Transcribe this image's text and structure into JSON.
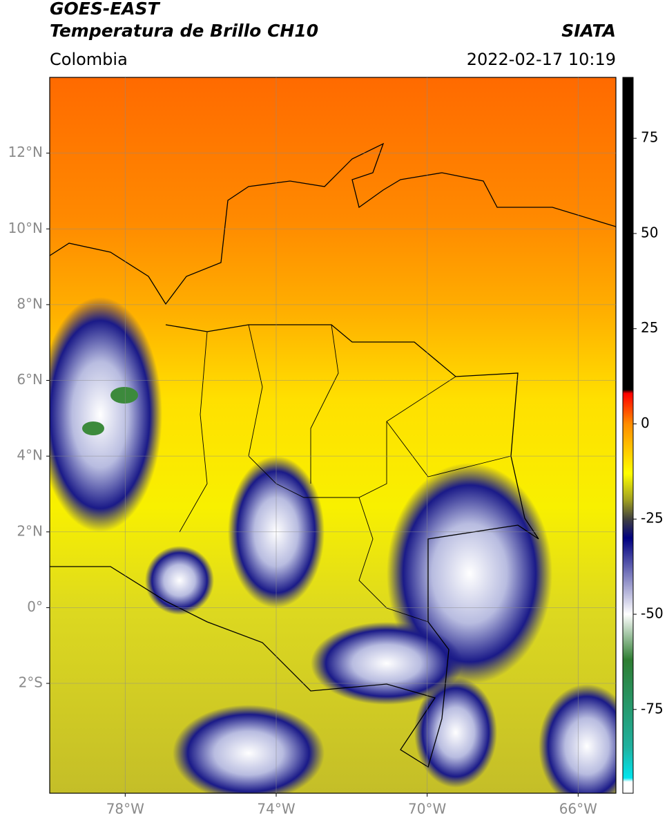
{
  "chart_data": {
    "type": "map",
    "title": "GOES-EAST",
    "subtitle": "Temperatura de Brillo CH10",
    "source": "SIATA",
    "region": "Colombia",
    "timestamp": "2022-02-17 10:19",
    "xlim": [
      -80,
      -65
    ],
    "ylim": [
      -4.9,
      14
    ],
    "xticks": [
      {
        "value": -78,
        "label": "78°W"
      },
      {
        "value": -74,
        "label": "74°W"
      },
      {
        "value": -70,
        "label": "70°W"
      },
      {
        "value": -66,
        "label": "66°W"
      }
    ],
    "yticks": [
      {
        "value": 12,
        "label": "12°N"
      },
      {
        "value": 10,
        "label": "10°N"
      },
      {
        "value": 8,
        "label": "8°N"
      },
      {
        "value": 6,
        "label": "6°N"
      },
      {
        "value": 4,
        "label": "4°N"
      },
      {
        "value": 2,
        "label": "2°N"
      },
      {
        "value": 0,
        "label": "0°"
      },
      {
        "value": -2,
        "label": "2°S"
      }
    ],
    "grid": true,
    "colorbar": {
      "lim": [
        -97,
        91
      ],
      "ticks": [
        75,
        50,
        25,
        0,
        -25,
        -50,
        -75
      ],
      "stops": [
        {
          "value": 91,
          "color": "#000000"
        },
        {
          "value": 9,
          "color": "#000000"
        },
        {
          "value": 8,
          "color": "#ff0000"
        },
        {
          "value": 0,
          "color": "#ff8c00"
        },
        {
          "value": -13,
          "color": "#ffff00"
        },
        {
          "value": -20,
          "color": "#a0a020"
        },
        {
          "value": -25,
          "color": "#404040"
        },
        {
          "value": -30,
          "color": "#000080"
        },
        {
          "value": -50,
          "color": "#ffffff"
        },
        {
          "value": -62,
          "color": "#2e7d32"
        },
        {
          "value": -85,
          "color": "#20b2a0"
        },
        {
          "value": -93,
          "color": "#00e5ee"
        },
        {
          "value": -94,
          "color": "#ffffff"
        },
        {
          "value": -97,
          "color": "#ffffff"
        }
      ]
    }
  }
}
